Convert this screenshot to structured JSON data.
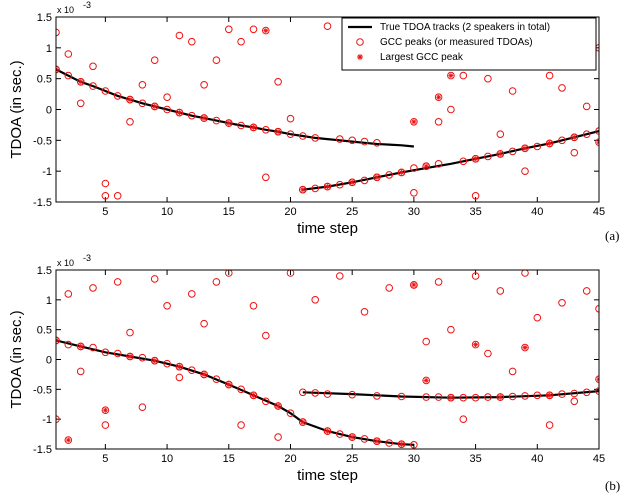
{
  "chart_data": [
    {
      "type": "scatter",
      "panel_label": "(a)",
      "xlabel": "time step",
      "ylabel": "TDOA (in sec.)",
      "y_multiplier": "x 10",
      "y_exponent": "-3",
      "xlim": [
        1,
        45
      ],
      "ylim": [
        -1.5,
        1.5
      ],
      "x_ticks": [
        "5",
        "10",
        "15",
        "20",
        "25",
        "30",
        "35",
        "40",
        "45"
      ],
      "y_ticks": [
        "1.5",
        "1",
        "0.5",
        "0",
        "-0.5",
        "-1",
        "-1.5"
      ],
      "legend": {
        "position": "top-right",
        "entries": [
          "True TDOA tracks (2 speakers in total)",
          "GCC peaks (or measured TDOAs)",
          "Largest GCC peak"
        ]
      },
      "series": [
        {
          "name": "True TDOA tracks (2 speakers in total)",
          "kind": "track",
          "x": [
            1,
            2,
            3,
            4,
            5,
            6,
            7,
            8,
            9,
            10,
            11,
            12,
            13,
            14,
            15,
            16,
            17,
            18,
            19,
            20,
            21,
            22,
            23,
            24,
            25,
            26,
            27,
            28,
            29,
            30
          ],
          "y": [
            0.65,
            0.55,
            0.45,
            0.38,
            0.3,
            0.22,
            0.16,
            0.1,
            0.05,
            0.0,
            -0.05,
            -0.1,
            -0.14,
            -0.18,
            -0.22,
            -0.26,
            -0.29,
            -0.33,
            -0.36,
            -0.4,
            -0.43,
            -0.46,
            -0.48,
            -0.5,
            -0.52,
            -0.54,
            -0.56,
            -0.57,
            -0.58,
            -0.6
          ]
        },
        {
          "name": "True TDOA tracks (2 speakers in total)",
          "kind": "track",
          "x": [
            21,
            23,
            25,
            27,
            29,
            31,
            33,
            35,
            37,
            39,
            41,
            43,
            45
          ],
          "y": [
            -1.3,
            -1.25,
            -1.18,
            -1.1,
            -1.02,
            -0.95,
            -0.88,
            -0.8,
            -0.72,
            -0.63,
            -0.55,
            -0.45,
            -0.35
          ]
        },
        {
          "name": "GCC peaks (or measured TDOAs)",
          "kind": "open",
          "x": [
            1,
            1,
            2,
            2,
            3,
            3,
            4,
            4,
            5,
            5,
            5,
            6,
            6,
            7,
            7,
            8,
            8,
            9,
            9,
            10,
            10,
            11,
            11,
            12,
            12,
            13,
            13,
            14,
            14,
            15,
            15,
            16,
            16,
            17,
            17,
            18,
            18,
            19,
            19,
            20,
            20,
            21,
            21,
            22,
            22,
            23,
            23,
            24,
            24,
            25,
            25,
            26,
            26,
            27,
            27,
            28,
            28,
            29,
            29,
            30,
            30,
            31,
            31,
            32,
            32,
            33,
            33,
            34,
            34,
            35,
            35,
            36,
            36,
            37,
            37,
            38,
            38,
            39,
            39,
            40,
            40,
            41,
            41,
            42,
            42,
            43,
            43,
            44,
            44,
            45,
            45
          ],
          "y": [
            1.25,
            0.65,
            0.55,
            0.9,
            0.45,
            0.1,
            0.7,
            0.38,
            0.3,
            -1.4,
            -1.2,
            0.22,
            -1.4,
            0.16,
            -0.2,
            0.4,
            0.1,
            0.05,
            0.8,
            0.0,
            0.2,
            -0.05,
            1.2,
            -0.1,
            1.1,
            -0.14,
            0.4,
            -0.18,
            0.8,
            -0.22,
            1.3,
            -0.26,
            1.1,
            -0.29,
            1.3,
            -0.33,
            -1.1,
            -0.36,
            0.45,
            -0.4,
            -0.15,
            -1.3,
            -0.43,
            -1.28,
            -0.46,
            -1.25,
            1.35,
            -1.22,
            -0.48,
            -1.18,
            -0.5,
            -1.15,
            -0.52,
            -1.1,
            -0.54,
            -1.06,
            1.0,
            -1.02,
            1.3,
            -0.95,
            -1.35,
            -0.92,
            1.3,
            -0.88,
            -0.2,
            0.0,
            1.1,
            0.55,
            -0.84,
            -0.8,
            -1.4,
            -0.76,
            0.5,
            -0.72,
            -0.4,
            -0.68,
            0.3,
            -0.63,
            -1.0,
            -0.6,
            1.1,
            -0.55,
            0.55,
            -0.5,
            0.35,
            -0.45,
            -0.7,
            -0.4,
            0.05,
            -0.35,
            1.0
          ]
        },
        {
          "name": "Largest GCC peak",
          "kind": "star",
          "x": [
            1,
            3,
            7,
            9,
            11,
            13,
            15,
            17,
            18,
            19,
            21,
            23,
            25,
            27,
            29,
            30,
            31,
            32,
            33,
            35,
            37,
            39,
            41,
            43,
            45
          ],
          "y": [
            0.65,
            0.45,
            0.16,
            0.05,
            -0.05,
            -0.14,
            -0.22,
            -0.29,
            1.28,
            -0.36,
            -1.3,
            -1.25,
            -1.18,
            -1.1,
            -1.02,
            -0.2,
            -0.92,
            0.2,
            0.55,
            -0.8,
            -0.72,
            -0.63,
            -0.55,
            -0.45,
            -0.53
          ]
        }
      ]
    },
    {
      "type": "scatter",
      "panel_label": "(b)",
      "xlabel": "time step",
      "ylabel": "TDOA (in sec.)",
      "y_multiplier": "x 10",
      "y_exponent": "-3",
      "xlim": [
        1,
        45
      ],
      "ylim": [
        -1.5,
        1.5
      ],
      "x_ticks": [
        "5",
        "10",
        "15",
        "20",
        "25",
        "30",
        "35",
        "40",
        "45"
      ],
      "y_ticks": [
        "1.5",
        "1",
        "0.5",
        "0",
        "-0.5",
        "-1",
        "-1.5"
      ],
      "series": [
        {
          "name": "True TDOA tracks (2 speakers in total)",
          "kind": "track",
          "x": [
            1,
            3,
            5,
            7,
            9,
            11,
            13,
            15,
            17,
            19,
            20,
            21,
            23,
            25,
            27,
            29,
            30
          ],
          "y": [
            0.32,
            0.22,
            0.12,
            0.05,
            -0.02,
            -0.12,
            -0.25,
            -0.42,
            -0.6,
            -0.78,
            -0.9,
            -1.05,
            -1.2,
            -1.3,
            -1.37,
            -1.42,
            -1.43
          ]
        },
        {
          "name": "True TDOA tracks (2 speakers in total)",
          "kind": "track",
          "x": [
            21,
            25,
            29,
            33,
            37,
            41,
            45
          ],
          "y": [
            -0.55,
            -0.58,
            -0.62,
            -0.64,
            -0.63,
            -0.6,
            -0.53
          ]
        },
        {
          "name": "GCC peaks (or measured TDOAs)",
          "kind": "open",
          "x": [
            1,
            1,
            2,
            2,
            3,
            3,
            4,
            4,
            5,
            5,
            6,
            6,
            7,
            7,
            8,
            8,
            9,
            9,
            10,
            10,
            11,
            11,
            12,
            12,
            13,
            13,
            14,
            14,
            15,
            15,
            16,
            16,
            17,
            17,
            18,
            18,
            19,
            19,
            20,
            20,
            21,
            21,
            22,
            22,
            23,
            23,
            24,
            24,
            25,
            25,
            26,
            26,
            27,
            27,
            28,
            28,
            29,
            29,
            30,
            30,
            31,
            31,
            32,
            32,
            33,
            33,
            34,
            34,
            35,
            35,
            36,
            36,
            37,
            37,
            38,
            38,
            39,
            39,
            40,
            40,
            41,
            41,
            42,
            42,
            43,
            43,
            44,
            44,
            45,
            45
          ],
          "y": [
            0.32,
            -1.0,
            0.25,
            1.1,
            0.22,
            -0.2,
            0.2,
            1.2,
            0.12,
            -1.1,
            0.1,
            1.3,
            0.05,
            0.45,
            0.03,
            -0.8,
            -0.02,
            1.35,
            -0.07,
            0.9,
            -0.12,
            -0.3,
            -0.18,
            1.1,
            -0.25,
            0.6,
            -0.33,
            1.3,
            -0.42,
            1.45,
            -0.5,
            -1.1,
            -0.6,
            0.9,
            -0.7,
            0.4,
            -0.78,
            -1.3,
            -0.9,
            1.45,
            -0.55,
            -1.05,
            -0.56,
            1.0,
            -1.2,
            -0.58,
            -1.25,
            1.4,
            -1.3,
            -0.59,
            -1.33,
            0.8,
            -1.37,
            -0.61,
            -1.4,
            1.2,
            -1.42,
            -0.62,
            -1.43,
            1.25,
            -0.63,
            0.3,
            -0.63,
            1.3,
            -0.64,
            0.5,
            -0.64,
            -1.0,
            -0.64,
            1.4,
            -0.63,
            0.1,
            -0.63,
            1.15,
            -0.62,
            -0.2,
            -0.61,
            1.45,
            -0.6,
            0.7,
            -0.6,
            -1.1,
            -0.58,
            0.95,
            -0.57,
            -0.7,
            -0.55,
            1.15,
            -0.53,
            0.85
          ]
        },
        {
          "name": "Largest GCC peak",
          "kind": "star",
          "x": [
            1,
            2,
            3,
            5,
            7,
            9,
            11,
            13,
            15,
            17,
            19,
            21,
            23,
            25,
            27,
            29,
            30,
            31,
            33,
            35,
            37,
            39,
            41,
            45
          ],
          "y": [
            0.32,
            -1.35,
            0.22,
            -0.85,
            0.05,
            -0.02,
            -0.12,
            -0.25,
            -0.42,
            -0.6,
            -0.78,
            -1.05,
            -1.2,
            -1.3,
            -1.37,
            -1.42,
            1.25,
            -0.35,
            -0.64,
            0.25,
            -0.63,
            0.2,
            -0.6,
            -0.33
          ]
        }
      ]
    }
  ]
}
